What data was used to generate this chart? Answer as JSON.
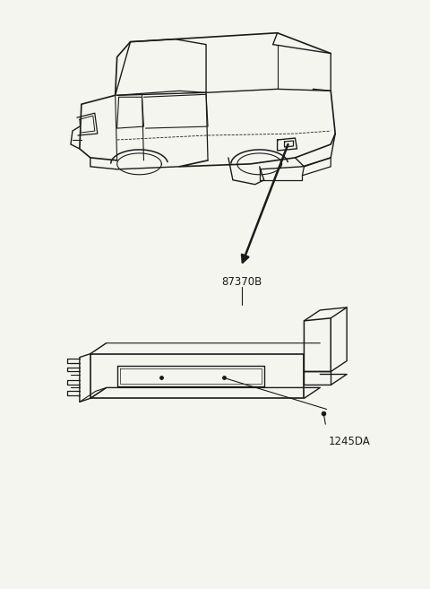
{
  "bg_color": "#f5f5f0",
  "line_color": "#1a1a1a",
  "label_87370B": "87370B",
  "label_1245DA": "1245DA",
  "fig_width": 4.8,
  "fig_height": 6.57,
  "dpi": 100
}
